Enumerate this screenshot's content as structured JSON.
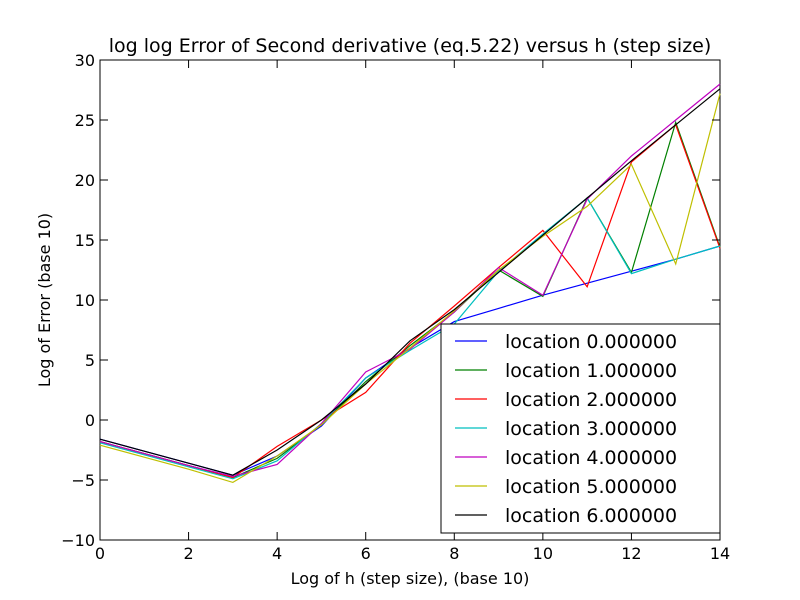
{
  "chart_data": {
    "type": "line",
    "title": "log log Error of Second derivative (eq.5.22) versus h (step size)",
    "xlabel": "Log of h (step size), (base 10)",
    "ylabel": "Log of Error (base 10)",
    "xlim": [
      0,
      14
    ],
    "ylim": [
      -10,
      30
    ],
    "xticks": [
      0,
      2,
      4,
      6,
      8,
      10,
      12,
      14
    ],
    "yticks": [
      -10,
      -5,
      0,
      5,
      10,
      15,
      20,
      25,
      30
    ],
    "grid": false,
    "legend_position": "lower-right",
    "x": [
      0,
      1,
      2,
      3,
      4,
      5,
      6,
      7,
      8,
      9,
      10,
      11,
      12,
      13,
      14
    ],
    "series": [
      {
        "name": "location 0.000000",
        "color": "#0000ff",
        "values": [
          -1.6,
          -2.6,
          -3.6,
          -4.6,
          -3.0,
          -0.5,
          3.5,
          6.0,
          8.2,
          9.3,
          10.4,
          11.4,
          12.4,
          13.4,
          14.5
        ]
      },
      {
        "name": "location 1.000000",
        "color": "#008000",
        "values": [
          -1.8,
          -2.8,
          -3.8,
          -4.8,
          -3.2,
          -0.4,
          3.2,
          6.2,
          9.0,
          12.5,
          10.3,
          18.5,
          12.3,
          24.8,
          14.4
        ]
      },
      {
        "name": "location 2.000000",
        "color": "#ff0000",
        "values": [
          -1.8,
          -2.8,
          -3.8,
          -4.8,
          -2.2,
          0.0,
          2.3,
          6.4,
          9.5,
          12.7,
          15.8,
          11.1,
          21.5,
          24.6,
          14.3
        ]
      },
      {
        "name": "location 3.000000",
        "color": "#00bfbf",
        "values": [
          -1.9,
          -2.9,
          -3.9,
          -4.9,
          -3.4,
          -0.3,
          3.5,
          5.8,
          8.0,
          12.4,
          15.5,
          18.5,
          12.2,
          13.4,
          14.5
        ]
      },
      {
        "name": "location 4.000000",
        "color": "#bf00bf",
        "values": [
          -1.8,
          -2.8,
          -3.8,
          -4.7,
          -3.7,
          -0.3,
          4.0,
          5.9,
          9.0,
          12.7,
          10.4,
          18.4,
          22.0,
          25.0,
          28.0
        ]
      },
      {
        "name": "location 5.000000",
        "color": "#bfbf00",
        "values": [
          -2.1,
          -3.1,
          -4.1,
          -5.2,
          -3.0,
          -0.4,
          3.0,
          6.0,
          9.1,
          12.5,
          15.3,
          17.8,
          21.3,
          13.0,
          27.2
        ]
      },
      {
        "name": "location 6.000000",
        "color": "#000000",
        "values": [
          -1.6,
          -2.6,
          -3.6,
          -4.6,
          -2.5,
          0.0,
          3.0,
          6.6,
          9.2,
          12.3,
          15.4,
          18.5,
          21.6,
          24.6,
          27.6
        ]
      }
    ]
  }
}
